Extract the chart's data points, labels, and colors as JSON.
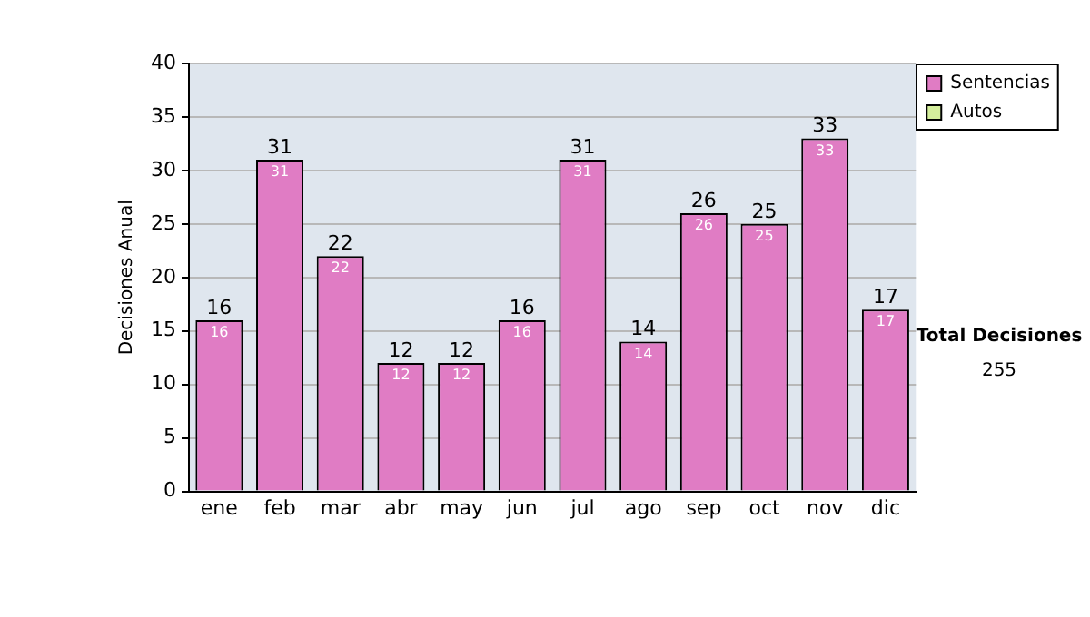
{
  "chart_data": {
    "type": "bar",
    "ylabel": "Decisiones Anual",
    "categories": [
      "ene",
      "feb",
      "mar",
      "abr",
      "may",
      "jun",
      "jul",
      "ago",
      "sep",
      "oct",
      "nov",
      "dic"
    ],
    "series": [
      {
        "name": "Sentencias",
        "color": "#e07cc4",
        "values": [
          16,
          31,
          22,
          12,
          12,
          16,
          31,
          14,
          26,
          25,
          33,
          17
        ],
        "value_labels": [
          "16",
          "31",
          "22",
          "12",
          "12",
          "16",
          "31",
          "14",
          "26",
          "25",
          "33",
          "17"
        ]
      },
      {
        "name": "Autos",
        "color": "#d4ee9c",
        "values": [
          0,
          0,
          0,
          0,
          0,
          0,
          0,
          0,
          0,
          0,
          0,
          0
        ]
      }
    ],
    "stacked": true,
    "totals": [
      "16",
      "31",
      "22",
      "12",
      "12",
      "16",
      "31",
      "14",
      "26",
      "25",
      "33",
      "17"
    ],
    "ylim": [
      0,
      40
    ],
    "yticks": [
      0,
      5,
      10,
      15,
      20,
      25,
      30,
      35,
      40
    ],
    "grid": "y",
    "legend": "right",
    "annotations": [
      "Total Decisiones",
      "255"
    ]
  }
}
